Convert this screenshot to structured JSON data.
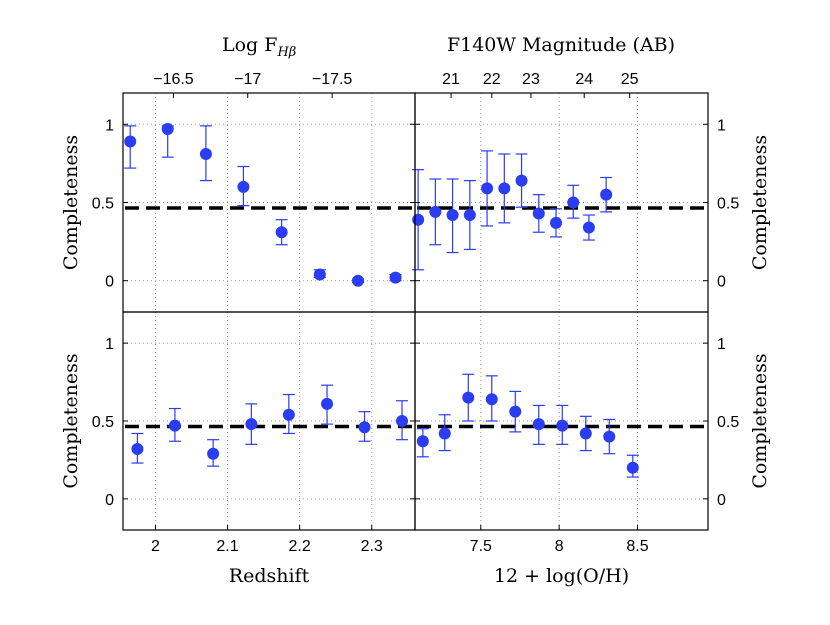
{
  "colors": {
    "marker": "#2a3df0",
    "errorbar": "#2a3df0",
    "threshold": "#000000",
    "grid": "#9a9a9a",
    "axes": "#000000"
  },
  "top_axis_titles": {
    "left": "Log F",
    "left_subscript": "Hβ",
    "right": "F140W Magnitude (AB)"
  },
  "chart_data": [
    {
      "id": "top-left",
      "type": "scatter",
      "panel": "top-left",
      "title": "",
      "xlabel": "",
      "ylabel": "Completeness",
      "ylabel_side": "left",
      "xlim": [
        1.955,
        2.36
      ],
      "ylim": [
        -0.2,
        1.2
      ],
      "yticks": [
        0,
        0.5,
        1
      ],
      "ytick_labels": [
        "0",
        "0.5",
        "1"
      ],
      "xgrid": [
        2.0,
        2.1,
        2.2,
        2.3
      ],
      "top_ticks": [
        {
          "at": 2.025,
          "label": "−16.5"
        },
        {
          "at": 2.128,
          "label": "−17"
        },
        {
          "at": 2.245,
          "label": "−17.5"
        }
      ],
      "threshold": 0.465,
      "points": [
        {
          "x": 1.965,
          "y": 0.89,
          "lo": 0.72,
          "hi": 0.99
        },
        {
          "x": 2.017,
          "y": 0.97,
          "lo": 0.79,
          "hi": 0.99
        },
        {
          "x": 2.07,
          "y": 0.81,
          "lo": 0.64,
          "hi": 0.99
        },
        {
          "x": 2.122,
          "y": 0.6,
          "lo": 0.48,
          "hi": 0.73
        },
        {
          "x": 2.175,
          "y": 0.31,
          "lo": 0.23,
          "hi": 0.39
        },
        {
          "x": 2.228,
          "y": 0.04,
          "lo": 0.02,
          "hi": 0.07
        },
        {
          "x": 2.281,
          "y": 0.0,
          "lo": -0.01,
          "hi": 0.01
        },
        {
          "x": 2.333,
          "y": 0.02,
          "lo": 0.0,
          "hi": 0.04
        }
      ]
    },
    {
      "id": "top-right",
      "type": "scatter",
      "panel": "top-right",
      "title": "",
      "xlabel": "",
      "ylabel": "Completeness",
      "ylabel_side": "right",
      "xlim": [
        7.08,
        8.95
      ],
      "ylim": [
        -0.2,
        1.2
      ],
      "yticks": [
        0,
        0.5,
        1
      ],
      "ytick_labels": [
        "0",
        "0.5",
        "1"
      ],
      "xgrid": [
        7.5,
        8.0,
        8.5
      ],
      "top_ticks": [
        {
          "at": 7.31,
          "label": "21"
        },
        {
          "at": 7.57,
          "label": "22"
        },
        {
          "at": 7.82,
          "label": "23"
        },
        {
          "at": 8.16,
          "label": "24"
        },
        {
          "at": 8.45,
          "label": "25"
        }
      ],
      "threshold": 0.465,
      "points": [
        {
          "x": 7.1,
          "y": 0.39,
          "lo": 0.07,
          "hi": 0.71
        },
        {
          "x": 7.21,
          "y": 0.44,
          "lo": 0.23,
          "hi": 0.65
        },
        {
          "x": 7.32,
          "y": 0.42,
          "lo": 0.18,
          "hi": 0.65
        },
        {
          "x": 7.43,
          "y": 0.42,
          "lo": 0.2,
          "hi": 0.64
        },
        {
          "x": 7.54,
          "y": 0.59,
          "lo": 0.35,
          "hi": 0.83
        },
        {
          "x": 7.65,
          "y": 0.59,
          "lo": 0.37,
          "hi": 0.81
        },
        {
          "x": 7.76,
          "y": 0.64,
          "lo": 0.47,
          "hi": 0.81
        },
        {
          "x": 7.87,
          "y": 0.43,
          "lo": 0.31,
          "hi": 0.55
        },
        {
          "x": 7.98,
          "y": 0.37,
          "lo": 0.28,
          "hi": 0.46
        },
        {
          "x": 8.09,
          "y": 0.5,
          "lo": 0.4,
          "hi": 0.61
        },
        {
          "x": 8.19,
          "y": 0.34,
          "lo": 0.26,
          "hi": 0.42
        },
        {
          "x": 8.3,
          "y": 0.55,
          "lo": 0.44,
          "hi": 0.66
        }
      ]
    },
    {
      "id": "bottom-left",
      "type": "scatter",
      "panel": "bottom-left",
      "title": "",
      "xlabel": "Redshift",
      "ylabel": "Completeness",
      "ylabel_side": "left",
      "xlim": [
        1.955,
        2.36
      ],
      "ylim": [
        -0.2,
        1.2
      ],
      "yticks": [
        0,
        0.5,
        1
      ],
      "ytick_labels": [
        "0",
        "0.5",
        "1"
      ],
      "xticks": [
        2.0,
        2.1,
        2.2,
        2.3
      ],
      "xtick_labels": [
        "2",
        "2.1",
        "2.2",
        "2.3"
      ],
      "threshold": 0.465,
      "points": [
        {
          "x": 1.975,
          "y": 0.32,
          "lo": 0.23,
          "hi": 0.42
        },
        {
          "x": 2.027,
          "y": 0.47,
          "lo": 0.37,
          "hi": 0.58
        },
        {
          "x": 2.08,
          "y": 0.29,
          "lo": 0.21,
          "hi": 0.38
        },
        {
          "x": 2.133,
          "y": 0.48,
          "lo": 0.35,
          "hi": 0.61
        },
        {
          "x": 2.185,
          "y": 0.54,
          "lo": 0.42,
          "hi": 0.67
        },
        {
          "x": 2.238,
          "y": 0.61,
          "lo": 0.48,
          "hi": 0.73
        },
        {
          "x": 2.29,
          "y": 0.46,
          "lo": 0.37,
          "hi": 0.56
        },
        {
          "x": 2.342,
          "y": 0.5,
          "lo": 0.38,
          "hi": 0.63
        }
      ]
    },
    {
      "id": "bottom-right",
      "type": "scatter",
      "panel": "bottom-right",
      "title": "",
      "xlabel": "12 + log(O/H)",
      "ylabel": "Completeness",
      "ylabel_side": "right",
      "xlim": [
        7.08,
        8.95
      ],
      "ylim": [
        -0.2,
        1.2
      ],
      "yticks": [
        0,
        0.5,
        1
      ],
      "ytick_labels": [
        "0",
        "0.5",
        "1"
      ],
      "xticks": [
        7.5,
        8.0,
        8.5
      ],
      "xtick_labels": [
        "7.5",
        "8",
        "8.5"
      ],
      "threshold": 0.465,
      "points": [
        {
          "x": 7.13,
          "y": 0.37,
          "lo": 0.27,
          "hi": 0.45
        },
        {
          "x": 7.27,
          "y": 0.42,
          "lo": 0.31,
          "hi": 0.54
        },
        {
          "x": 7.42,
          "y": 0.65,
          "lo": 0.5,
          "hi": 0.8
        },
        {
          "x": 7.57,
          "y": 0.64,
          "lo": 0.5,
          "hi": 0.79
        },
        {
          "x": 7.72,
          "y": 0.56,
          "lo": 0.43,
          "hi": 0.69
        },
        {
          "x": 7.87,
          "y": 0.48,
          "lo": 0.35,
          "hi": 0.6
        },
        {
          "x": 8.02,
          "y": 0.47,
          "lo": 0.35,
          "hi": 0.6
        },
        {
          "x": 8.17,
          "y": 0.42,
          "lo": 0.31,
          "hi": 0.53
        },
        {
          "x": 8.32,
          "y": 0.4,
          "lo": 0.29,
          "hi": 0.51
        },
        {
          "x": 8.47,
          "y": 0.2,
          "lo": 0.14,
          "hi": 0.28
        }
      ]
    }
  ]
}
